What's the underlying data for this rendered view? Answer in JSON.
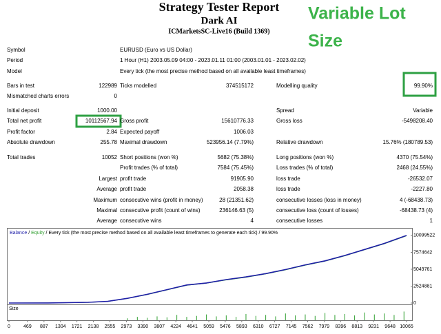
{
  "header": {
    "title": "Strategy Tester Report",
    "subtitle": "Dark AI",
    "server": "ICMarketsSC-Live16 (Build 1369)"
  },
  "annotation": {
    "line1": "Variable Lot",
    "line2": "Size"
  },
  "report": {
    "rows": [
      [
        "Symbol",
        null,
        "EURUSD (Euro vs US Dollar)"
      ],
      [
        "Period",
        null,
        "1 Hour (H1) 2003.05.09 04:00 - 2023.01.11 01:00 (2003.01.01 - 2023.02.02)"
      ],
      [
        "Model",
        null,
        "Every tick (the most precise method based on all available least timeframes)"
      ],
      [
        "Bars in test",
        "122989",
        "Ticks modelled",
        "374515172",
        "Modelling quality",
        "99.90%"
      ],
      [
        "Mismatched charts errors",
        "0"
      ],
      [
        "Initial deposit",
        "1000.00",
        null,
        null,
        "Spread",
        "Variable"
      ],
      [
        "Total net profit",
        "10112567.94",
        "Gross profit",
        "15610776.33",
        "Gross loss",
        "-5498208.40"
      ],
      [
        "Profit factor",
        "2.84",
        "Expected payoff",
        "1006.03"
      ],
      [
        "Absolute drawdown",
        "255.78",
        "Maximal drawdown",
        "523956.14 (7.79%)",
        "Relative drawdown",
        "15.76% (180789.53)"
      ],
      [
        "Total trades",
        "10052",
        "Short positions (won %)",
        "5682 (75.38%)",
        "Long positions (won %)",
        "4370 (75.54%)"
      ],
      [
        null,
        null,
        "Profit trades (% of total)",
        "7584 (75.45%)",
        "Loss trades (% of total)",
        "2468 (24.55%)"
      ],
      [
        null,
        "Largest",
        "profit trade",
        "91905.90",
        "loss trade",
        "-26532.07"
      ],
      [
        null,
        "Average",
        "profit trade",
        "2058.38",
        "loss trade",
        "-2227.80"
      ],
      [
        null,
        "Maximum",
        "consecutive wins (profit in money)",
        "28 (21351.62)",
        "consecutive losses (loss in money)",
        "4 (-68438.73)"
      ],
      [
        null,
        "Maximal",
        "consecutive profit (count of wins)",
        "236146.63 (5)",
        "consecutive loss (count of losses)",
        "-68438.73 (4)"
      ],
      [
        null,
        "Average",
        "consecutive wins",
        "4",
        "consecutive losses",
        "1"
      ]
    ]
  },
  "chart_data": {
    "type": "line",
    "legend_separator": " / ",
    "legend_text": "Every tick (the most precise method based on all available least timeframes to generate each tick)",
    "legend_quality": "99.90%",
    "x": [
      0,
      1000,
      2000,
      2500,
      3000,
      3500,
      4000,
      4500,
      5000,
      5500,
      6000,
      6500,
      7000,
      7500,
      8000,
      8500,
      9000,
      9500,
      10065
    ],
    "series": [
      {
        "name": "Balance",
        "color": "#1f1fa8",
        "values": [
          1000,
          10000,
          100000,
          250000,
          700000,
          1300000,
          2000000,
          2700000,
          3000000,
          3500000,
          3900000,
          4400000,
          5000000,
          5700000,
          6300000,
          7100000,
          8000000,
          8900000,
          10099522
        ]
      },
      {
        "name": "Equity",
        "color": "#2e9e2e",
        "values": [
          1000,
          10000,
          95000,
          240000,
          680000,
          1270000,
          1960000,
          2650000,
          2950000,
          3450000,
          3850000,
          4350000,
          4950000,
          5650000,
          6250000,
          7050000,
          7950000,
          8850000,
          10050000
        ]
      }
    ],
    "xlim": [
      0,
      10065
    ],
    "xticks": [
      0,
      469,
      887,
      1304,
      1721,
      2138,
      2555,
      2973,
      3390,
      3807,
      4224,
      4641,
      5059,
      5476,
      5893,
      6310,
      6727,
      7145,
      7562,
      7979,
      8396,
      8813,
      9231,
      9648,
      10065
    ],
    "ylim": [
      0,
      10500000
    ],
    "yticks": [
      0,
      2524881,
      5049761,
      7574642,
      10099522
    ],
    "size_label": "Size",
    "size_color": "#2e9e2e",
    "size_x": [
      3000,
      3250,
      3500,
      3750,
      4000,
      4250,
      4500,
      4750,
      5000,
      5250,
      5500,
      5750,
      6000,
      6250,
      6500,
      6750,
      7000,
      7250,
      7500,
      7750,
      8000,
      8250,
      8500,
      8750,
      9000,
      9250,
      9500,
      9750,
      10000
    ],
    "size_values": [
      20,
      35,
      25,
      40,
      30,
      55,
      35,
      45,
      60,
      40,
      50,
      35,
      65,
      45,
      55,
      40,
      70,
      50,
      60,
      45,
      75,
      55,
      65,
      50,
      80,
      60,
      70,
      55,
      90
    ],
    "size_ylim": [
      0,
      100
    ]
  }
}
